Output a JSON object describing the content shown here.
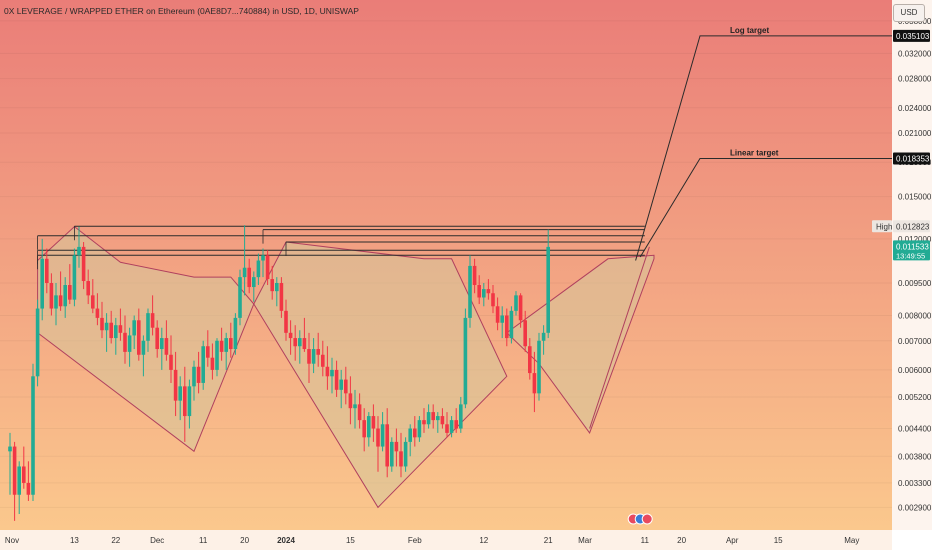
{
  "title": "0X LEVERAGE / WRAPPED ETHER on Ethereum (0AE8D7...740884) in USD, 1D, UNISWAP",
  "currency_button": "USD",
  "price_badges": {
    "log_target": "0.035103",
    "linear_target": "0.018353",
    "high": "0.012823",
    "high_label": "High",
    "last_price": "0.011533",
    "countdown": "13:49:55"
  },
  "colors": {
    "up": "#22ab94",
    "down": "#f23645",
    "pattern_fill": "#d6c69b",
    "pattern_stroke": "#b0405e",
    "line": "#2b2b2b",
    "bg_top": "#ea7d78",
    "bg_bottom": "#fbc88d"
  },
  "chart_data": {
    "type": "candlestick",
    "title": "0X LEVERAGE / WRAPPED ETHER on Ethereum (0AE8D7...740884) in USD, 1D, UNISWAP",
    "y_scale": "log",
    "y_axis": {
      "min": 0.0026,
      "max": 0.042,
      "tick_labels": [
        "0.038000",
        "0.032000",
        "0.028000",
        "0.024000",
        "0.021000",
        "0.018000",
        "0.015000",
        "0.012000",
        "0.009500",
        "0.008000",
        "0.007000",
        "0.006000",
        "0.005200",
        "0.004400",
        "0.003800",
        "0.003300",
        "0.002900"
      ],
      "ticks": [
        0.038,
        0.032,
        0.028,
        0.024,
        0.021,
        0.018,
        0.015,
        0.012,
        0.0095,
        0.008,
        0.007,
        0.006,
        0.0052,
        0.0044,
        0.0038,
        0.0033,
        0.0029
      ]
    },
    "x_axis": {
      "labels": [
        "Nov",
        "13",
        "22",
        "Dec",
        "11",
        "20",
        "2024",
        "15",
        "Feb",
        "12",
        "21",
        "Mar",
        "11",
        "20",
        "Apr",
        "15",
        "May"
      ],
      "bold": [
        "2024"
      ]
    },
    "annotations": [
      {
        "text": "Log target",
        "value": 0.035103
      },
      {
        "text": "Linear target",
        "value": 0.018353
      }
    ],
    "candles": [
      {
        "o": 0.0039,
        "h": 0.0043,
        "l": 0.0031,
        "c": 0.004
      },
      {
        "o": 0.004,
        "h": 0.0041,
        "l": 0.0027,
        "c": 0.0031
      },
      {
        "o": 0.0031,
        "h": 0.0037,
        "l": 0.0028,
        "c": 0.0036
      },
      {
        "o": 0.0036,
        "h": 0.004,
        "l": 0.0032,
        "c": 0.0033
      },
      {
        "o": 0.0033,
        "h": 0.0037,
        "l": 0.003,
        "c": 0.0031
      },
      {
        "o": 0.0031,
        "h": 0.0062,
        "l": 0.003,
        "c": 0.0058
      },
      {
        "o": 0.0058,
        "h": 0.0087,
        "l": 0.0055,
        "c": 0.0083
      },
      {
        "o": 0.0083,
        "h": 0.012,
        "l": 0.0078,
        "c": 0.0108
      },
      {
        "o": 0.0108,
        "h": 0.0114,
        "l": 0.009,
        "c": 0.0095
      },
      {
        "o": 0.0095,
        "h": 0.01,
        "l": 0.008,
        "c": 0.0083
      },
      {
        "o": 0.0083,
        "h": 0.0095,
        "l": 0.0076,
        "c": 0.0089
      },
      {
        "o": 0.0089,
        "h": 0.0101,
        "l": 0.0082,
        "c": 0.0084
      },
      {
        "o": 0.0084,
        "h": 0.0098,
        "l": 0.0079,
        "c": 0.0094
      },
      {
        "o": 0.0094,
        "h": 0.0105,
        "l": 0.0085,
        "c": 0.0087
      },
      {
        "o": 0.0087,
        "h": 0.0114,
        "l": 0.0084,
        "c": 0.011
      },
      {
        "o": 0.011,
        "h": 0.0128,
        "l": 0.0103,
        "c": 0.0115
      },
      {
        "o": 0.0115,
        "h": 0.0118,
        "l": 0.0092,
        "c": 0.0096
      },
      {
        "o": 0.0096,
        "h": 0.0102,
        "l": 0.0085,
        "c": 0.0089
      },
      {
        "o": 0.0089,
        "h": 0.0097,
        "l": 0.0081,
        "c": 0.0083
      },
      {
        "o": 0.0083,
        "h": 0.009,
        "l": 0.0076,
        "c": 0.0079
      },
      {
        "o": 0.0079,
        "h": 0.0086,
        "l": 0.0071,
        "c": 0.0074
      },
      {
        "o": 0.0074,
        "h": 0.0081,
        "l": 0.0066,
        "c": 0.0077
      },
      {
        "o": 0.0077,
        "h": 0.0082,
        "l": 0.0069,
        "c": 0.0071
      },
      {
        "o": 0.0071,
        "h": 0.0079,
        "l": 0.0065,
        "c": 0.0076
      },
      {
        "o": 0.0076,
        "h": 0.0083,
        "l": 0.007,
        "c": 0.0073
      },
      {
        "o": 0.0073,
        "h": 0.008,
        "l": 0.0062,
        "c": 0.0066
      },
      {
        "o": 0.0066,
        "h": 0.0075,
        "l": 0.0061,
        "c": 0.0072
      },
      {
        "o": 0.0072,
        "h": 0.008,
        "l": 0.0067,
        "c": 0.0078
      },
      {
        "o": 0.0078,
        "h": 0.0083,
        "l": 0.0063,
        "c": 0.0065
      },
      {
        "o": 0.0065,
        "h": 0.0072,
        "l": 0.0058,
        "c": 0.007
      },
      {
        "o": 0.007,
        "h": 0.0083,
        "l": 0.0066,
        "c": 0.0081
      },
      {
        "o": 0.0081,
        "h": 0.0089,
        "l": 0.0072,
        "c": 0.0075
      },
      {
        "o": 0.0075,
        "h": 0.0078,
        "l": 0.0064,
        "c": 0.0067
      },
      {
        "o": 0.0067,
        "h": 0.0075,
        "l": 0.006,
        "c": 0.0071
      },
      {
        "o": 0.0071,
        "h": 0.0078,
        "l": 0.0063,
        "c": 0.0065
      },
      {
        "o": 0.0065,
        "h": 0.0072,
        "l": 0.0056,
        "c": 0.006
      },
      {
        "o": 0.006,
        "h": 0.0066,
        "l": 0.0047,
        "c": 0.0051
      },
      {
        "o": 0.0051,
        "h": 0.0058,
        "l": 0.0046,
        "c": 0.0055
      },
      {
        "o": 0.0055,
        "h": 0.0061,
        "l": 0.0041,
        "c": 0.0047
      },
      {
        "o": 0.0047,
        "h": 0.0057,
        "l": 0.0044,
        "c": 0.0055
      },
      {
        "o": 0.0055,
        "h": 0.0063,
        "l": 0.0051,
        "c": 0.0061
      },
      {
        "o": 0.0061,
        "h": 0.0066,
        "l": 0.0053,
        "c": 0.0056
      },
      {
        "o": 0.0056,
        "h": 0.007,
        "l": 0.0054,
        "c": 0.0068
      },
      {
        "o": 0.0068,
        "h": 0.0074,
        "l": 0.0061,
        "c": 0.0064
      },
      {
        "o": 0.0064,
        "h": 0.0069,
        "l": 0.0057,
        "c": 0.006
      },
      {
        "o": 0.006,
        "h": 0.0071,
        "l": 0.0058,
        "c": 0.007
      },
      {
        "o": 0.007,
        "h": 0.0075,
        "l": 0.0063,
        "c": 0.0066
      },
      {
        "o": 0.0066,
        "h": 0.0073,
        "l": 0.006,
        "c": 0.0071
      },
      {
        "o": 0.0071,
        "h": 0.0077,
        "l": 0.0064,
        "c": 0.0067
      },
      {
        "o": 0.0067,
        "h": 0.0081,
        "l": 0.0065,
        "c": 0.0079
      },
      {
        "o": 0.0079,
        "h": 0.0102,
        "l": 0.0076,
        "c": 0.0098
      },
      {
        "o": 0.0098,
        "h": 0.0129,
        "l": 0.0089,
        "c": 0.0103
      },
      {
        "o": 0.0103,
        "h": 0.0108,
        "l": 0.009,
        "c": 0.0093
      },
      {
        "o": 0.0093,
        "h": 0.0101,
        "l": 0.0086,
        "c": 0.0098
      },
      {
        "o": 0.0098,
        "h": 0.0111,
        "l": 0.0094,
        "c": 0.0107
      },
      {
        "o": 0.0107,
        "h": 0.0114,
        "l": 0.0098,
        "c": 0.011
      },
      {
        "o": 0.011,
        "h": 0.0113,
        "l": 0.0094,
        "c": 0.0097
      },
      {
        "o": 0.0097,
        "h": 0.0104,
        "l": 0.0087,
        "c": 0.0091
      },
      {
        "o": 0.0091,
        "h": 0.0098,
        "l": 0.0084,
        "c": 0.0095
      },
      {
        "o": 0.0095,
        "h": 0.0098,
        "l": 0.0079,
        "c": 0.0082
      },
      {
        "o": 0.0082,
        "h": 0.0087,
        "l": 0.007,
        "c": 0.0073
      },
      {
        "o": 0.0073,
        "h": 0.0078,
        "l": 0.0065,
        "c": 0.0071
      },
      {
        "o": 0.0071,
        "h": 0.0076,
        "l": 0.0063,
        "c": 0.0068
      },
      {
        "o": 0.0068,
        "h": 0.0074,
        "l": 0.0062,
        "c": 0.0071
      },
      {
        "o": 0.0071,
        "h": 0.0079,
        "l": 0.0066,
        "c": 0.0067
      },
      {
        "o": 0.0067,
        "h": 0.0073,
        "l": 0.0056,
        "c": 0.0062
      },
      {
        "o": 0.0062,
        "h": 0.0071,
        "l": 0.0059,
        "c": 0.0067
      },
      {
        "o": 0.0067,
        "h": 0.0073,
        "l": 0.0061,
        "c": 0.0065
      },
      {
        "o": 0.0065,
        "h": 0.007,
        "l": 0.0058,
        "c": 0.0061
      },
      {
        "o": 0.0061,
        "h": 0.0068,
        "l": 0.0054,
        "c": 0.0058
      },
      {
        "o": 0.0058,
        "h": 0.0064,
        "l": 0.0053,
        "c": 0.006
      },
      {
        "o": 0.006,
        "h": 0.0063,
        "l": 0.0052,
        "c": 0.0054
      },
      {
        "o": 0.0054,
        "h": 0.006,
        "l": 0.0049,
        "c": 0.0057
      },
      {
        "o": 0.0057,
        "h": 0.0061,
        "l": 0.005,
        "c": 0.0053
      },
      {
        "o": 0.0053,
        "h": 0.0058,
        "l": 0.0045,
        "c": 0.0049
      },
      {
        "o": 0.0049,
        "h": 0.0054,
        "l": 0.0044,
        "c": 0.005
      },
      {
        "o": 0.005,
        "h": 0.0053,
        "l": 0.0044,
        "c": 0.0046
      },
      {
        "o": 0.0046,
        "h": 0.0049,
        "l": 0.0039,
        "c": 0.0042
      },
      {
        "o": 0.0042,
        "h": 0.0048,
        "l": 0.004,
        "c": 0.0047
      },
      {
        "o": 0.0047,
        "h": 0.005,
        "l": 0.0041,
        "c": 0.0044
      },
      {
        "o": 0.0044,
        "h": 0.0047,
        "l": 0.0035,
        "c": 0.004
      },
      {
        "o": 0.004,
        "h": 0.0048,
        "l": 0.0039,
        "c": 0.0045
      },
      {
        "o": 0.0045,
        "h": 0.0049,
        "l": 0.0034,
        "c": 0.0036
      },
      {
        "o": 0.0036,
        "h": 0.0042,
        "l": 0.0035,
        "c": 0.0041
      },
      {
        "o": 0.0041,
        "h": 0.0044,
        "l": 0.0036,
        "c": 0.0039
      },
      {
        "o": 0.0039,
        "h": 0.0043,
        "l": 0.0034,
        "c": 0.0036
      },
      {
        "o": 0.0036,
        "h": 0.0042,
        "l": 0.0035,
        "c": 0.0041
      },
      {
        "o": 0.0041,
        "h": 0.0045,
        "l": 0.0038,
        "c": 0.0044
      },
      {
        "o": 0.0044,
        "h": 0.0047,
        "l": 0.004,
        "c": 0.0042
      },
      {
        "o": 0.0042,
        "h": 0.0047,
        "l": 0.0041,
        "c": 0.0046
      },
      {
        "o": 0.0046,
        "h": 0.0049,
        "l": 0.0043,
        "c": 0.0045
      },
      {
        "o": 0.0045,
        "h": 0.005,
        "l": 0.0044,
        "c": 0.0048
      },
      {
        "o": 0.0048,
        "h": 0.005,
        "l": 0.0044,
        "c": 0.0046
      },
      {
        "o": 0.0046,
        "h": 0.0048,
        "l": 0.0043,
        "c": 0.0047
      },
      {
        "o": 0.0047,
        "h": 0.0049,
        "l": 0.0044,
        "c": 0.0045
      },
      {
        "o": 0.0045,
        "h": 0.0048,
        "l": 0.0042,
        "c": 0.0043
      },
      {
        "o": 0.0043,
        "h": 0.0047,
        "l": 0.0042,
        "c": 0.0046
      },
      {
        "o": 0.0046,
        "h": 0.0049,
        "l": 0.0043,
        "c": 0.0044
      },
      {
        "o": 0.0044,
        "h": 0.0052,
        "l": 0.0043,
        "c": 0.005
      },
      {
        "o": 0.005,
        "h": 0.0083,
        "l": 0.0049,
        "c": 0.0079
      },
      {
        "o": 0.0079,
        "h": 0.011,
        "l": 0.0075,
        "c": 0.0104
      },
      {
        "o": 0.0104,
        "h": 0.0108,
        "l": 0.009,
        "c": 0.0094
      },
      {
        "o": 0.0094,
        "h": 0.0099,
        "l": 0.0085,
        "c": 0.0088
      },
      {
        "o": 0.0088,
        "h": 0.0095,
        "l": 0.0084,
        "c": 0.0092
      },
      {
        "o": 0.0092,
        "h": 0.0097,
        "l": 0.0087,
        "c": 0.009
      },
      {
        "o": 0.009,
        "h": 0.0094,
        "l": 0.0081,
        "c": 0.0084
      },
      {
        "o": 0.0084,
        "h": 0.0088,
        "l": 0.0074,
        "c": 0.0077
      },
      {
        "o": 0.0077,
        "h": 0.0084,
        "l": 0.0071,
        "c": 0.008
      },
      {
        "o": 0.008,
        "h": 0.0083,
        "l": 0.0068,
        "c": 0.0071
      },
      {
        "o": 0.0071,
        "h": 0.0084,
        "l": 0.0069,
        "c": 0.0082
      },
      {
        "o": 0.0082,
        "h": 0.0091,
        "l": 0.008,
        "c": 0.0089
      },
      {
        "o": 0.0089,
        "h": 0.009,
        "l": 0.0075,
        "c": 0.0078
      },
      {
        "o": 0.0078,
        "h": 0.0082,
        "l": 0.0066,
        "c": 0.0068
      },
      {
        "o": 0.0068,
        "h": 0.0071,
        "l": 0.0057,
        "c": 0.0059
      },
      {
        "o": 0.0059,
        "h": 0.0066,
        "l": 0.0048,
        "c": 0.0053
      },
      {
        "o": 0.0053,
        "h": 0.0073,
        "l": 0.0051,
        "c": 0.007
      },
      {
        "o": 0.007,
        "h": 0.0076,
        "l": 0.0065,
        "c": 0.0073
      },
      {
        "o": 0.0073,
        "h": 0.0126,
        "l": 0.0071,
        "c": 0.0115
      }
    ],
    "highlighted_levels": [
      0.012823,
      0.0126,
      0.0122,
      0.0118,
      0.0113,
      0.011
    ],
    "pattern_regions": [
      {
        "name": "left-shoulder",
        "points": [
          [
            6,
            0.0107
          ],
          [
            14,
            0.0128
          ],
          [
            24,
            0.0106
          ],
          [
            40,
            0.0098
          ],
          [
            48,
            0.0098
          ],
          [
            53,
            0.0085
          ],
          [
            40,
            0.0039
          ],
          [
            6,
            0.0073
          ]
        ]
      },
      {
        "name": "head",
        "points": [
          [
            53,
            0.0085
          ],
          [
            60,
            0.0118
          ],
          [
            90,
            0.0108
          ],
          [
            96,
            0.0108
          ],
          [
            108,
            0.0058
          ],
          [
            80,
            0.0029
          ]
        ]
      },
      {
        "name": "right-shoulder",
        "points": [
          [
            108,
            0.0073
          ],
          [
            130,
            0.0108
          ],
          [
            140,
            0.011
          ],
          [
            140,
            0.0108
          ],
          [
            126,
            0.0043
          ],
          [
            115,
            0.0062
          ]
        ]
      }
    ],
    "projection": {
      "linear_from": [
        137,
        0.0109
      ],
      "linear_to": [
        150,
        0.018353
      ],
      "log_from": [
        136,
        0.0107
      ],
      "log_to": [
        150,
        0.035103
      ]
    }
  }
}
